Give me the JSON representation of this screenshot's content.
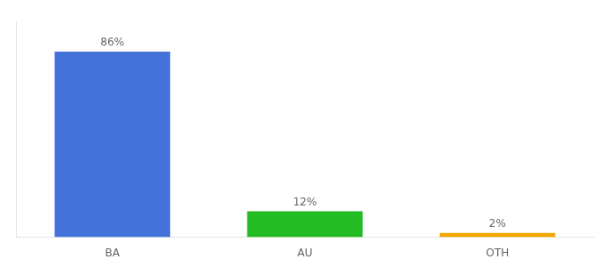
{
  "chart_data": {
    "type": "bar",
    "categories": [
      "BA",
      "AU",
      "OTH"
    ],
    "values": [
      86,
      12,
      2
    ],
    "value_labels": [
      "86%",
      "12%",
      "2%"
    ],
    "data_labels": true,
    "colors": [
      "#4472db",
      "#22bb22",
      "#f0a800"
    ],
    "ylim": [
      0,
      100
    ],
    "grid": false,
    "tick_labels": "x"
  }
}
